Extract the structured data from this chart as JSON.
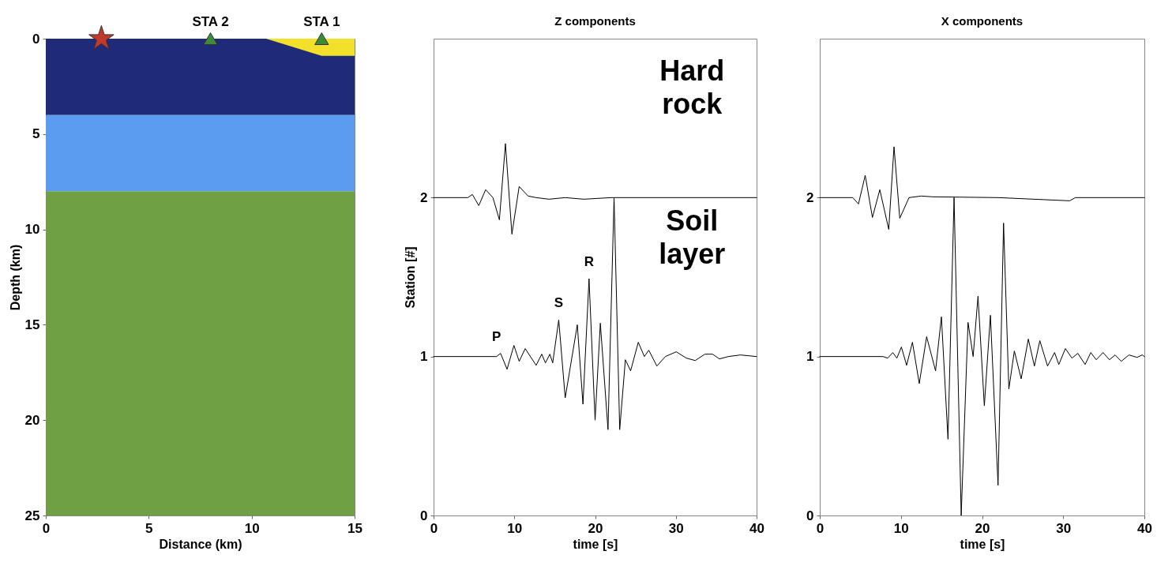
{
  "chart_data": [
    {
      "type": "area",
      "xlabel": "Distance (km)",
      "ylabel": "Depth (km)",
      "xlim": [
        0,
        15
      ],
      "ylim": [
        25,
        0
      ],
      "xticks": [
        0,
        5,
        10,
        15
      ],
      "yticks": [
        0,
        5,
        10,
        15,
        20,
        25
      ],
      "bands": [
        {
          "axis": "y",
          "from": 0,
          "to": 4,
          "color": "#1f2a78"
        },
        {
          "axis": "y",
          "from": 4,
          "to": 8,
          "color": "#5b9bf0"
        },
        {
          "axis": "y",
          "from": 8,
          "to": 25,
          "color": "#6fa043"
        }
      ],
      "series": [
        {
          "color": "#f2e02a",
          "x": [
            10.7,
            13.4,
            15
          ],
          "values": [
            0,
            0.9,
            0.9
          ]
        },
        {
          "type": "scatter",
          "marker": "star",
          "color": "#c0392b",
          "x": [
            2.7
          ],
          "values": [
            0
          ]
        },
        {
          "type": "scatter",
          "marker": "triangle",
          "color": "#3d8a3a",
          "x": [
            8,
            13.4
          ],
          "values": [
            0,
            0
          ]
        }
      ],
      "annotations": [
        {
          "text": "STA 2",
          "x": 8,
          "y": 0
        },
        {
          "text": "STA 1",
          "x": 13.4,
          "y": 0
        }
      ]
    },
    {
      "type": "line",
      "title": "Z components",
      "xlabel": "time [s]",
      "ylabel": "Station [#]",
      "xlim": [
        0,
        40
      ],
      "ylim": [
        0,
        3
      ],
      "xticks": [
        0,
        10,
        20,
        30,
        40
      ],
      "yticks": [
        0,
        1,
        2
      ],
      "series": [
        {
          "color": "#000000",
          "x": [
            0,
            4.25,
            4.8,
            5.6,
            6.45,
            7.35,
            8.15,
            8.9,
            9.7,
            10.6,
            11.7,
            12.7,
            14.3,
            16.3,
            18.6,
            22,
            40
          ],
          "values": [
            2,
            2,
            2.02,
            1.95,
            2.05,
            2,
            1.86,
            2.34,
            1.77,
            2.07,
            2.01,
            2,
            1.99,
            2,
            1.99,
            2,
            2
          ]
        },
        {
          "color": "#000000",
          "x": [
            0,
            7.8,
            8.3,
            9.1,
            9.95,
            10.6,
            11.35,
            12.7,
            13.4,
            13.85,
            14.4,
            14.75,
            15.5,
            16.3,
            17.8,
            18.5,
            19.25,
            20,
            20.65,
            21.6,
            22.35,
            23.05,
            23.75,
            24.4,
            25.35,
            26.1,
            26.65,
            27.65,
            28.7,
            30.05,
            31.3,
            32.4,
            33.6,
            34.55,
            35.4,
            36.5,
            38,
            40
          ],
          "values": [
            1,
            1,
            1.02,
            0.92,
            1.07,
            0.97,
            1.05,
            0.945,
            1.015,
            0.96,
            1.015,
            0.96,
            1.23,
            0.74,
            1.2,
            0.7,
            1.49,
            0.6,
            1.21,
            0.54,
            2,
            0.54,
            0.98,
            0.91,
            1.09,
            1,
            1.04,
            0.94,
            1,
            1.03,
            0.99,
            0.975,
            1.015,
            1.015,
            0.985,
            1,
            1.01,
            1
          ]
        }
      ],
      "annotations": [
        "Hard rock",
        "Soil layer",
        {
          "text": "P",
          "x": 7.8,
          "y": 1.02
        },
        {
          "text": "S",
          "x": 15.5,
          "y": 1.23
        },
        {
          "text": "R",
          "x": 19.25,
          "y": 1.49
        }
      ]
    },
    {
      "type": "line",
      "title": "X components",
      "xlabel": "time [s]",
      "xlim": [
        0,
        40
      ],
      "ylim": [
        0,
        3
      ],
      "xticks": [
        0,
        10,
        20,
        30,
        40
      ],
      "yticks": [
        0,
        1,
        2
      ],
      "series": [
        {
          "color": "#000000",
          "x": [
            0,
            4.06,
            4.77,
            5.6,
            6.49,
            7.4,
            8.5,
            9.15,
            9.86,
            11,
            12.5,
            13.9,
            22,
            30.8,
            31.5,
            40
          ],
          "values": [
            2,
            2,
            1.96,
            2.14,
            1.875,
            2.05,
            1.8,
            2.32,
            1.87,
            2,
            2.01,
            2.005,
            2,
            1.98,
            2,
            2
          ]
        },
        {
          "color": "#000000",
          "x": [
            0,
            7.8,
            8.37,
            9,
            9.5,
            10.06,
            10.7,
            11.42,
            12.26,
            13.17,
            14.27,
            14.99,
            15.8,
            16.55,
            17.43,
            18.27,
            18.9,
            19.5,
            20.28,
            21.03,
            21.97,
            22.65,
            23.3,
            23.98,
            24.82,
            25.7,
            26.45,
            27.12,
            28.07,
            28.94,
            29.46,
            30.27,
            31.08,
            31.8,
            32.7,
            33.4,
            34.07,
            34.9,
            35.7,
            36.4,
            37.15,
            38.1,
            39.1,
            39.75,
            40
          ],
          "values": [
            1,
            1,
            0.99,
            1.025,
            0.99,
            1.06,
            0.945,
            1.09,
            0.83,
            1.125,
            0.91,
            1.25,
            0.48,
            2,
            0,
            1.215,
            1,
            1.38,
            0.69,
            1.26,
            0.19,
            1.84,
            0.795,
            1.035,
            0.86,
            1.11,
            0.94,
            1.1,
            0.94,
            1.025,
            0.95,
            1.05,
            0.99,
            1.02,
            0.95,
            1.025,
            0.98,
            1.025,
            0.98,
            1.01,
            0.97,
            1.01,
            0.995,
            1.01,
            1
          ]
        }
      ]
    }
  ]
}
